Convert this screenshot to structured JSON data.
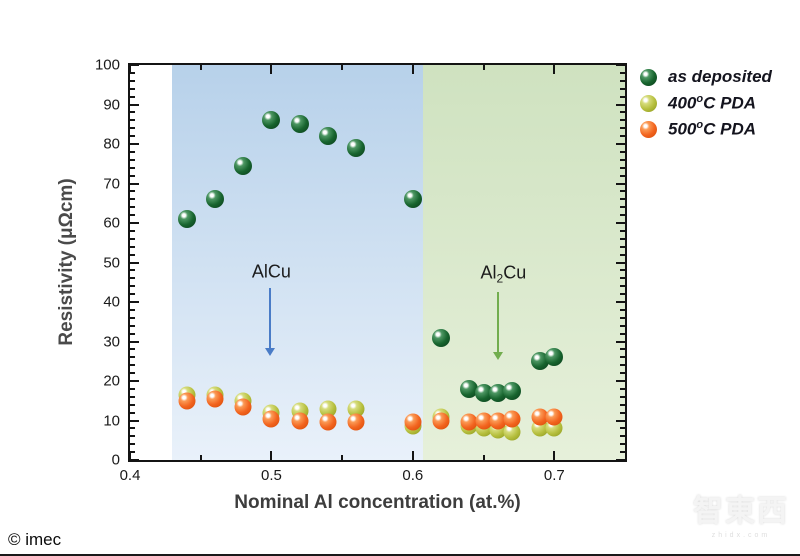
{
  "page": {
    "credit": "© imec",
    "watermark": {
      "text": "智東西",
      "subtext": "zhidx.com"
    }
  },
  "legend": {
    "items": [
      {
        "pre": "as deposited",
        "sup": "",
        "post": ""
      },
      {
        "pre": "400",
        "sup": "o",
        "post": "C PDA"
      },
      {
        "pre": "500",
        "sup": "o",
        "post": "C PDA"
      }
    ]
  },
  "chart_data": {
    "type": "scatter",
    "title": "",
    "xlabel": "Nominal Al concentration (at.%)",
    "ylabel": "Resistivity (μΩcm)",
    "xlim": [
      0.4,
      0.75
    ],
    "ylim": [
      0,
      100
    ],
    "x_major_ticks": [
      0.4,
      0.5,
      0.6,
      0.7
    ],
    "x_minor_ticks": [
      0.45,
      0.55,
      0.65
    ],
    "y_major_tick_step": 10,
    "y_minor_tick_step": 2,
    "grid": false,
    "legend_position": "outside-right-top",
    "frame_color": "#141414",
    "regions": [
      {
        "label": "AlCu phase region",
        "x0": 0.43,
        "x1": 0.607,
        "gradient_top": "#b7d1ea",
        "gradient_bottom": "#e9f1fa"
      },
      {
        "label": "Al2Cu phase region",
        "x0": 0.607,
        "x1": 0.75,
        "gradient_top": "#cfe2c0",
        "gradient_bottom": "#e6f0da"
      }
    ],
    "annotations": [
      {
        "parts": [
          {
            "t": "AlCu"
          }
        ],
        "x": 0.5,
        "y": 47.5,
        "arrow": {
          "x": 0.499,
          "y_from": 43.5,
          "y_to": 28,
          "color": "#4a7cc7"
        }
      },
      {
        "parts": [
          {
            "t": "Al"
          },
          {
            "sub": "2"
          },
          {
            "t": "Cu"
          }
        ],
        "x": 0.664,
        "y": 47,
        "arrow": {
          "x": 0.66,
          "y_from": 42.5,
          "y_to": 27,
          "color": "#72ad4e"
        }
      }
    ],
    "series": [
      {
        "name": "as deposited",
        "size": 18,
        "colors": {
          "highlight": "#ffffff",
          "light": "#4d9763",
          "base": "#17642e",
          "dark": "#093c1a"
        },
        "points": [
          [
            0.44,
            61
          ],
          [
            0.46,
            66
          ],
          [
            0.48,
            74.5
          ],
          [
            0.5,
            86
          ],
          [
            0.52,
            85
          ],
          [
            0.54,
            82
          ],
          [
            0.56,
            79
          ],
          [
            0.6,
            66
          ],
          [
            0.62,
            31
          ],
          [
            0.64,
            18
          ],
          [
            0.65,
            17
          ],
          [
            0.66,
            17
          ],
          [
            0.67,
            17.5
          ],
          [
            0.69,
            25
          ],
          [
            0.7,
            26
          ]
        ]
      },
      {
        "name": "400°C PDA",
        "size": 17,
        "colors": {
          "highlight": "#ffffff",
          "light": "#d6dc7c",
          "base": "#b6bf3e",
          "dark": "#8d991d"
        },
        "points": [
          [
            0.44,
            16.5
          ],
          [
            0.46,
            16.5
          ],
          [
            0.48,
            15
          ],
          [
            0.5,
            12
          ],
          [
            0.52,
            12.5
          ],
          [
            0.54,
            13
          ],
          [
            0.56,
            13
          ],
          [
            0.6,
            8.5
          ],
          [
            0.62,
            11
          ],
          [
            0.64,
            8.5
          ],
          [
            0.65,
            8
          ],
          [
            0.66,
            7.5
          ],
          [
            0.67,
            7
          ],
          [
            0.69,
            8
          ],
          [
            0.7,
            8
          ]
        ]
      },
      {
        "name": "500°C PDA",
        "size": 17,
        "colors": {
          "highlight": "#ffffff",
          "light": "#fb9a55",
          "base": "#f2641f",
          "dark": "#d64a07"
        },
        "points": [
          [
            0.44,
            15
          ],
          [
            0.46,
            15.5
          ],
          [
            0.48,
            13.5
          ],
          [
            0.5,
            10.5
          ],
          [
            0.52,
            10
          ],
          [
            0.54,
            9.5
          ],
          [
            0.56,
            9.5
          ],
          [
            0.6,
            9.5
          ],
          [
            0.62,
            10
          ],
          [
            0.64,
            9.5
          ],
          [
            0.65,
            10
          ],
          [
            0.66,
            10
          ],
          [
            0.67,
            10.5
          ],
          [
            0.69,
            11
          ],
          [
            0.7,
            11
          ]
        ]
      }
    ],
    "draw_order": [
      1,
      2,
      0
    ]
  }
}
